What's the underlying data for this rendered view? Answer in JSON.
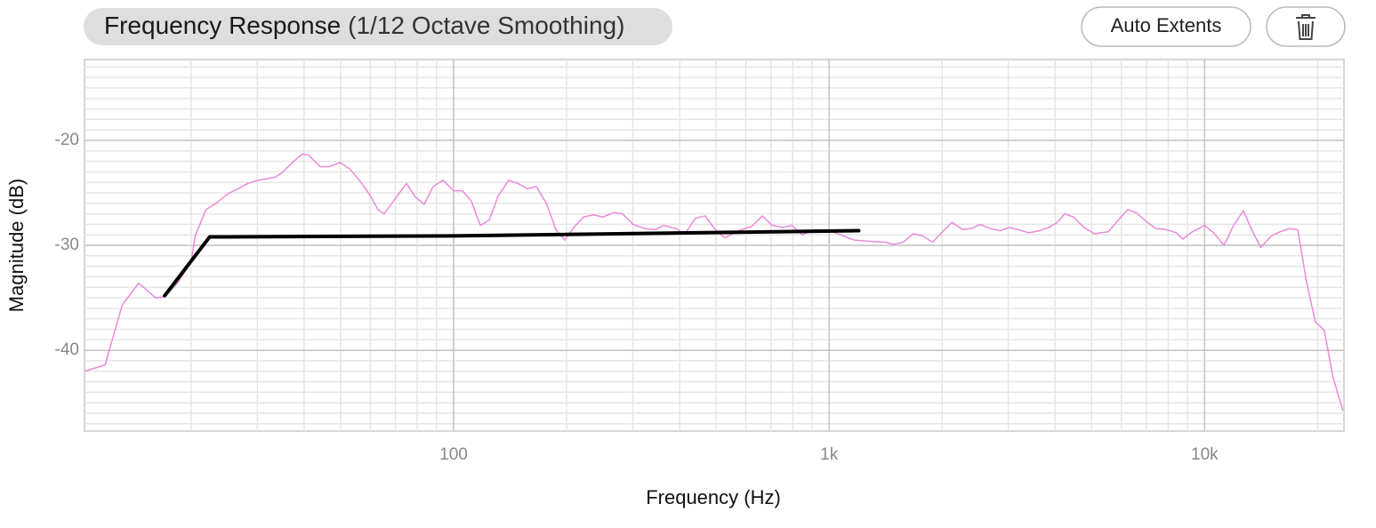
{
  "header": {
    "title": "Frequency Response",
    "subtitle": "(1/12 Octave Smoothing)"
  },
  "buttons": [
    {
      "label": "Auto Extents"
    }
  ],
  "chart_data": {
    "type": "line",
    "x_label": "Frequency (Hz)",
    "y_label": "Magnitude (dB)",
    "xscale": "log",
    "xlim": [
      10.4,
      23500
    ],
    "ylim": [
      -47.7,
      -12.3
    ],
    "xticks": [
      100,
      {
        "value": 1000,
        "label": "1k"
      },
      {
        "value": 10000,
        "label": "10k"
      }
    ],
    "yticks": [
      -40,
      -30,
      -20
    ],
    "grid": true,
    "minor_grid": true,
    "series": [
      {
        "color": "#e98ad8",
        "width": 1.5,
        "x": [
          10.4,
          11.8,
          13.1,
          14.5,
          16.1,
          17,
          18.4,
          20,
          20.5,
          21.9,
          23.5,
          25,
          26.7,
          28.3,
          30.2,
          33.6,
          35.1,
          37.5,
          39.5,
          41.1,
          44.1,
          46.6,
          49.8,
          52.8,
          56.4,
          59.6,
          62.9,
          65.3,
          69.4,
          74.9,
          79.1,
          83.5,
          88.2,
          93.7,
          100,
          105.6,
          111.5,
          117.8,
          124.4,
          131.4,
          140.2,
          148.1,
          157.3,
          166.1,
          177.2,
          187.2,
          197.7,
          208.8,
          221.7,
          235.3,
          249.9,
          266.7,
          281.6,
          300.6,
          322.5,
          344.2,
          361.9,
          390.9,
          412.9,
          440.8,
          468.1,
          494.4,
          527.5,
          573.4,
          621.8,
          663.8,
          705.4,
          752.7,
          794.8,
          848.4,
          910.4,
          1000,
          1073,
          1165,
          1263,
          1409,
          1489,
          1574,
          1677,
          1774,
          1886,
          1981,
          2125,
          2266,
          2391,
          2526,
          2680,
          2858,
          3017,
          3185,
          3396,
          3641,
          3844,
          4058,
          4237,
          4474,
          4771,
          5089,
          5544,
          5853,
          6240,
          6588,
          7026,
          7417,
          7910,
          8388,
          8756,
          9187,
          10000,
          10560,
          11265,
          11947,
          12680,
          13380,
          14110,
          15050,
          15890,
          16770,
          17700,
          18680,
          19720,
          20820,
          21980,
          23320
        ],
        "values": [
          -42.0,
          -41.4,
          -35.7,
          -33.6,
          -35.0,
          -34.9,
          -33.6,
          -31.6,
          -29.1,
          -26.6,
          -25.9,
          -25.1,
          -24.6,
          -24.1,
          -23.8,
          -23.5,
          -23.0,
          -22.0,
          -21.3,
          -21.4,
          -22.5,
          -22.5,
          -22.1,
          -22.7,
          -23.9,
          -25.1,
          -26.6,
          -27.0,
          -25.7,
          -24.1,
          -25.4,
          -26.1,
          -24.4,
          -23.8,
          -24.8,
          -24.8,
          -25.8,
          -28.1,
          -27.6,
          -25.3,
          -23.8,
          -24.1,
          -24.6,
          -24.4,
          -26.1,
          -28.5,
          -29.5,
          -28.3,
          -27.3,
          -27.1,
          -27.3,
          -26.9,
          -27.0,
          -28.0,
          -28.4,
          -28.5,
          -28.1,
          -28.4,
          -28.9,
          -27.4,
          -27.2,
          -28.4,
          -29.3,
          -28.6,
          -28.2,
          -27.2,
          -28.1,
          -28.3,
          -28.1,
          -29.0,
          -28.5,
          -28.6,
          -29.0,
          -29.5,
          -29.6,
          -29.7,
          -29.9,
          -29.7,
          -28.9,
          -29.1,
          -29.7,
          -28.9,
          -27.8,
          -28.5,
          -28.4,
          -28.0,
          -28.4,
          -28.6,
          -28.3,
          -28.5,
          -28.8,
          -28.6,
          -28.3,
          -27.8,
          -27.0,
          -27.3,
          -28.3,
          -28.9,
          -28.7,
          -27.7,
          -26.6,
          -26.9,
          -27.8,
          -28.4,
          -28.5,
          -28.8,
          -29.4,
          -28.8,
          -28.1,
          -28.8,
          -30.0,
          -28.1,
          -26.7,
          -28.6,
          -30.2,
          -29.1,
          -28.7,
          -28.4,
          -28.5,
          -33.5,
          -37.3,
          -38.1,
          -42.6,
          -45.7
        ]
      },
      {
        "color": "#000000",
        "width": 4,
        "x": [
          17,
          22.4,
          100,
          1199
        ],
        "values": [
          -34.8,
          -29.2,
          -29.1,
          -28.6
        ]
      }
    ]
  }
}
